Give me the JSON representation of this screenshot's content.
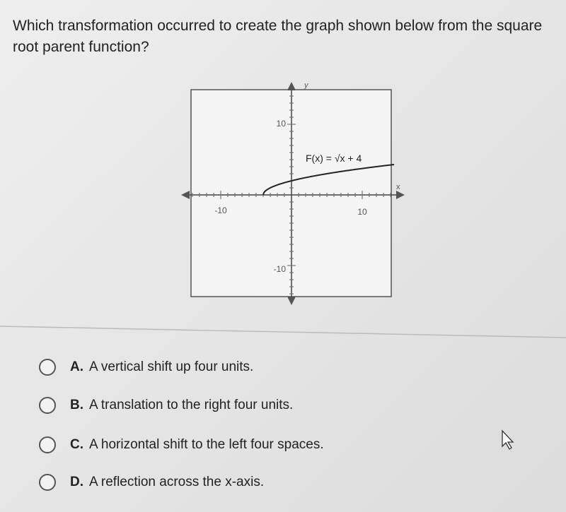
{
  "question": "Which transformation occurred to create the graph shown below from the square root parent function?",
  "graph": {
    "y_axis_label": "y",
    "x_axis_label": "x",
    "x_tick_labels": [
      "-10",
      "10"
    ],
    "y_tick_labels": [
      "10",
      "-10"
    ],
    "function_label": "F(x) = √x + 4"
  },
  "choices": [
    {
      "letter": "A.",
      "text": "A vertical shift up four units."
    },
    {
      "letter": "B.",
      "text": "A translation to the right four units."
    },
    {
      "letter": "C.",
      "text": "A horizontal shift to the left four spaces."
    },
    {
      "letter": "D.",
      "text": "A reflection across the x-axis."
    }
  ]
}
